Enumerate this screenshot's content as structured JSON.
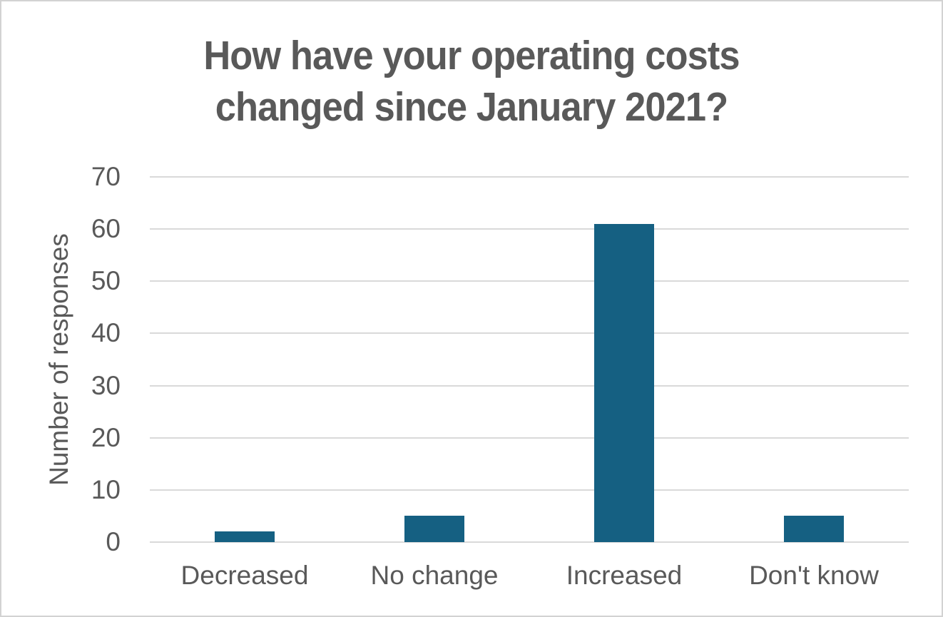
{
  "window": {
    "background": "#ffffff",
    "border_color": "#d2d2d2"
  },
  "chart_data": {
    "type": "bar",
    "title": "How have your operating costs changed since January 2021?",
    "title_lines": [
      "How have your operating costs",
      "changed since January 2021?"
    ],
    "xlabel": "",
    "ylabel": "Number of responses",
    "categories": [
      "Decreased",
      "No change",
      "Increased",
      "Don't know"
    ],
    "values": [
      2,
      5,
      61,
      5
    ],
    "ylim": [
      0,
      70
    ],
    "yticks": [
      0,
      10,
      20,
      30,
      40,
      50,
      60,
      70
    ],
    "grid": "horizontal",
    "legend_position": "none",
    "bar_color": "#156082",
    "gridline_color": "#d9d9d9",
    "text_color": "#595959",
    "title_color": "#595959"
  }
}
